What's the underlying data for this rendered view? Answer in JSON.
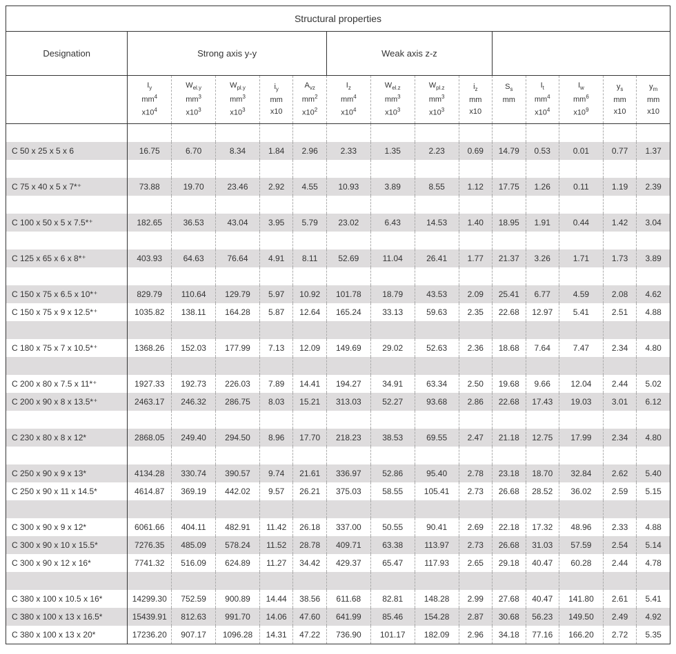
{
  "title": "Structural properties",
  "group_headers": {
    "designation": "Designation",
    "strong": "Strong axis y-y",
    "weak": "Weak axis z-z",
    "other": ""
  },
  "columns": [
    {
      "sym": "I",
      "sub": "y",
      "unit": "mm",
      "sup": "4",
      "mult": "x10",
      "mexp": "4"
    },
    {
      "sym": "W",
      "sub": "el.y",
      "unit": "mm",
      "sup": "3",
      "mult": "x10",
      "mexp": "3"
    },
    {
      "sym": "W",
      "sub": "pl.y",
      "unit": "mm",
      "sup": "3",
      "mult": "x10",
      "mexp": "3"
    },
    {
      "sym": "i",
      "sub": "y",
      "unit": "mm",
      "sup": "",
      "mult": "x10",
      "mexp": ""
    },
    {
      "sym": "A",
      "sub": "vz",
      "unit": "mm",
      "sup": "2",
      "mult": "x10",
      "mexp": "2"
    },
    {
      "sym": "I",
      "sub": "z",
      "unit": "mm",
      "sup": "4",
      "mult": "x10",
      "mexp": "4"
    },
    {
      "sym": "W",
      "sub": "el.z",
      "unit": "mm",
      "sup": "3",
      "mult": "x10",
      "mexp": "3"
    },
    {
      "sym": "W",
      "sub": "pl.z",
      "unit": "mm",
      "sup": "3",
      "mult": "x10",
      "mexp": "3"
    },
    {
      "sym": "i",
      "sub": "z",
      "unit": "mm",
      "sup": "",
      "mult": "x10",
      "mexp": ""
    },
    {
      "sym": "S",
      "sub": "s",
      "unit": "mm",
      "sup": "",
      "mult": "",
      "mexp": ""
    },
    {
      "sym": "I",
      "sub": "t",
      "unit": "mm",
      "sup": "4",
      "mult": "x10",
      "mexp": "4"
    },
    {
      "sym": "I",
      "sub": "w",
      "unit": "mm",
      "sup": "6",
      "mult": "x10",
      "mexp": "9"
    },
    {
      "sym": "y",
      "sub": "s",
      "unit": "mm",
      "sup": "",
      "mult": "x10",
      "mexp": ""
    },
    {
      "sym": "y",
      "sub": "m",
      "unit": "mm",
      "sup": "",
      "mult": "x10",
      "mexp": ""
    }
  ],
  "body": [
    {
      "type": "spacer",
      "shade": false
    },
    {
      "type": "data",
      "shade": true,
      "desig": "C 50 x 25 x 5 x 6",
      "v": [
        "16.75",
        "6.70",
        "8.34",
        "1.84",
        "2.96",
        "2.33",
        "1.35",
        "2.23",
        "0.69",
        "14.79",
        "0.53",
        "0.01",
        "0.77",
        "1.37"
      ]
    },
    {
      "type": "spacer",
      "shade": false
    },
    {
      "type": "data",
      "shade": true,
      "desig": "C 75 x 40 x 5 x 7*⁺",
      "v": [
        "73.88",
        "19.70",
        "23.46",
        "2.92",
        "4.55",
        "10.93",
        "3.89",
        "8.55",
        "1.12",
        "17.75",
        "1.26",
        "0.11",
        "1.19",
        "2.39"
      ]
    },
    {
      "type": "spacer",
      "shade": false
    },
    {
      "type": "data",
      "shade": true,
      "desig": "C 100 x 50 x 5 x 7.5*⁺",
      "v": [
        "182.65",
        "36.53",
        "43.04",
        "3.95",
        "5.79",
        "23.02",
        "6.43",
        "14.53",
        "1.40",
        "18.95",
        "1.91",
        "0.44",
        "1.42",
        "3.04"
      ]
    },
    {
      "type": "spacer",
      "shade": false
    },
    {
      "type": "data",
      "shade": true,
      "desig": "C 125 x 65 x 6 x 8*⁺",
      "v": [
        "403.93",
        "64.63",
        "76.64",
        "4.91",
        "8.11",
        "52.69",
        "11.04",
        "26.41",
        "1.77",
        "21.37",
        "3.26",
        "1.71",
        "1.73",
        "3.89"
      ]
    },
    {
      "type": "spacer",
      "shade": false
    },
    {
      "type": "data",
      "shade": true,
      "desig": "C 150 x 75 x 6.5 x 10*⁺",
      "v": [
        "829.79",
        "110.64",
        "129.79",
        "5.97",
        "10.92",
        "101.78",
        "18.79",
        "43.53",
        "2.09",
        "25.41",
        "6.77",
        "4.59",
        "2.08",
        "4.62"
      ]
    },
    {
      "type": "data",
      "shade": false,
      "desig": "C 150 x 75 x 9 x 12.5*⁺",
      "v": [
        "1035.82",
        "138.11",
        "164.28",
        "5.87",
        "12.64",
        "165.24",
        "33.13",
        "59.63",
        "2.35",
        "22.68",
        "12.97",
        "5.41",
        "2.51",
        "4.88"
      ]
    },
    {
      "type": "spacer",
      "shade": true
    },
    {
      "type": "data",
      "shade": false,
      "desig": "C 180 x 75 x 7 x 10.5*⁺",
      "v": [
        "1368.26",
        "152.03",
        "177.99",
        "7.13",
        "12.09",
        "149.69",
        "29.02",
        "52.63",
        "2.36",
        "18.68",
        "7.64",
        "7.47",
        "2.34",
        "4.80"
      ]
    },
    {
      "type": "spacer",
      "shade": true
    },
    {
      "type": "data",
      "shade": false,
      "desig": "C 200 x 80 x 7.5 x 11*⁺",
      "v": [
        "1927.33",
        "192.73",
        "226.03",
        "7.89",
        "14.41",
        "194.27",
        "34.91",
        "63.34",
        "2.50",
        "19.68",
        "9.66",
        "12.04",
        "2.44",
        "5.02"
      ]
    },
    {
      "type": "data",
      "shade": true,
      "desig": "C 200 x 90 x 8 x 13.5*⁺",
      "v": [
        "2463.17",
        "246.32",
        "286.75",
        "8.03",
        "15.21",
        "313.03",
        "52.27",
        "93.68",
        "2.86",
        "22.68",
        "17.43",
        "19.03",
        "3.01",
        "6.12"
      ]
    },
    {
      "type": "spacer",
      "shade": false
    },
    {
      "type": "data",
      "shade": true,
      "desig": "C 230 x 80 x 8 x 12*",
      "v": [
        "2868.05",
        "249.40",
        "294.50",
        "8.96",
        "17.70",
        "218.23",
        "38.53",
        "69.55",
        "2.47",
        "21.18",
        "12.75",
        "17.99",
        "2.34",
        "4.80"
      ]
    },
    {
      "type": "spacer",
      "shade": false
    },
    {
      "type": "data",
      "shade": true,
      "desig": "C 250 x 90 x 9 x 13*",
      "v": [
        "4134.28",
        "330.74",
        "390.57",
        "9.74",
        "21.61",
        "336.97",
        "52.86",
        "95.40",
        "2.78",
        "23.18",
        "18.70",
        "32.84",
        "2.62",
        "5.40"
      ]
    },
    {
      "type": "data",
      "shade": false,
      "desig": "C 250 x 90 x 11 x 14.5*",
      "v": [
        "4614.87",
        "369.19",
        "442.02",
        "9.57",
        "26.21",
        "375.03",
        "58.55",
        "105.41",
        "2.73",
        "26.68",
        "28.52",
        "36.02",
        "2.59",
        "5.15"
      ]
    },
    {
      "type": "spacer",
      "shade": true
    },
    {
      "type": "data",
      "shade": false,
      "desig": "C 300 x 90 x 9 x 12*",
      "v": [
        "6061.66",
        "404.11",
        "482.91",
        "11.42",
        "26.18",
        "337.00",
        "50.55",
        "90.41",
        "2.69",
        "22.18",
        "17.32",
        "48.96",
        "2.33",
        "4.88"
      ]
    },
    {
      "type": "data",
      "shade": true,
      "desig": "C 300 x 90 x 10 x 15.5*",
      "v": [
        "7276.35",
        "485.09",
        "578.24",
        "11.52",
        "28.78",
        "409.71",
        "63.38",
        "113.97",
        "2.73",
        "26.68",
        "31.03",
        "57.59",
        "2.54",
        "5.14"
      ]
    },
    {
      "type": "data",
      "shade": false,
      "desig": "C 300 x 90 x 12 x 16*",
      "v": [
        "7741.32",
        "516.09",
        "624.89",
        "11.27",
        "34.42",
        "429.37",
        "65.47",
        "117.93",
        "2.65",
        "29.18",
        "40.47",
        "60.28",
        "2.44",
        "4.78"
      ]
    },
    {
      "type": "spacer",
      "shade": true
    },
    {
      "type": "data",
      "shade": false,
      "desig": "C 380 x 100 x 10.5 x 16*",
      "v": [
        "14299.30",
        "752.59",
        "900.89",
        "14.44",
        "38.56",
        "611.68",
        "82.81",
        "148.28",
        "2.99",
        "27.68",
        "40.47",
        "141.80",
        "2.61",
        "5.41"
      ]
    },
    {
      "type": "data",
      "shade": true,
      "desig": "C 380 x 100 x 13 x 16.5*",
      "v": [
        "15439.91",
        "812.63",
        "991.70",
        "14.06",
        "47.60",
        "641.99",
        "85.46",
        "154.28",
        "2.87",
        "30.68",
        "56.23",
        "149.50",
        "2.49",
        "4.92"
      ]
    },
    {
      "type": "data",
      "shade": false,
      "desig": "C 380 x 100 x 13 x 20*",
      "v": [
        "17236.20",
        "907.17",
        "1096.28",
        "14.31",
        "47.22",
        "736.90",
        "101.17",
        "182.09",
        "2.96",
        "34.18",
        "77.16",
        "166.20",
        "2.72",
        "5.35"
      ]
    }
  ],
  "colors": {
    "shade": "#dedcdd",
    "border": "#333333",
    "dash": "#aaaaaa",
    "text": "#333333",
    "bg": "#ffffff"
  }
}
